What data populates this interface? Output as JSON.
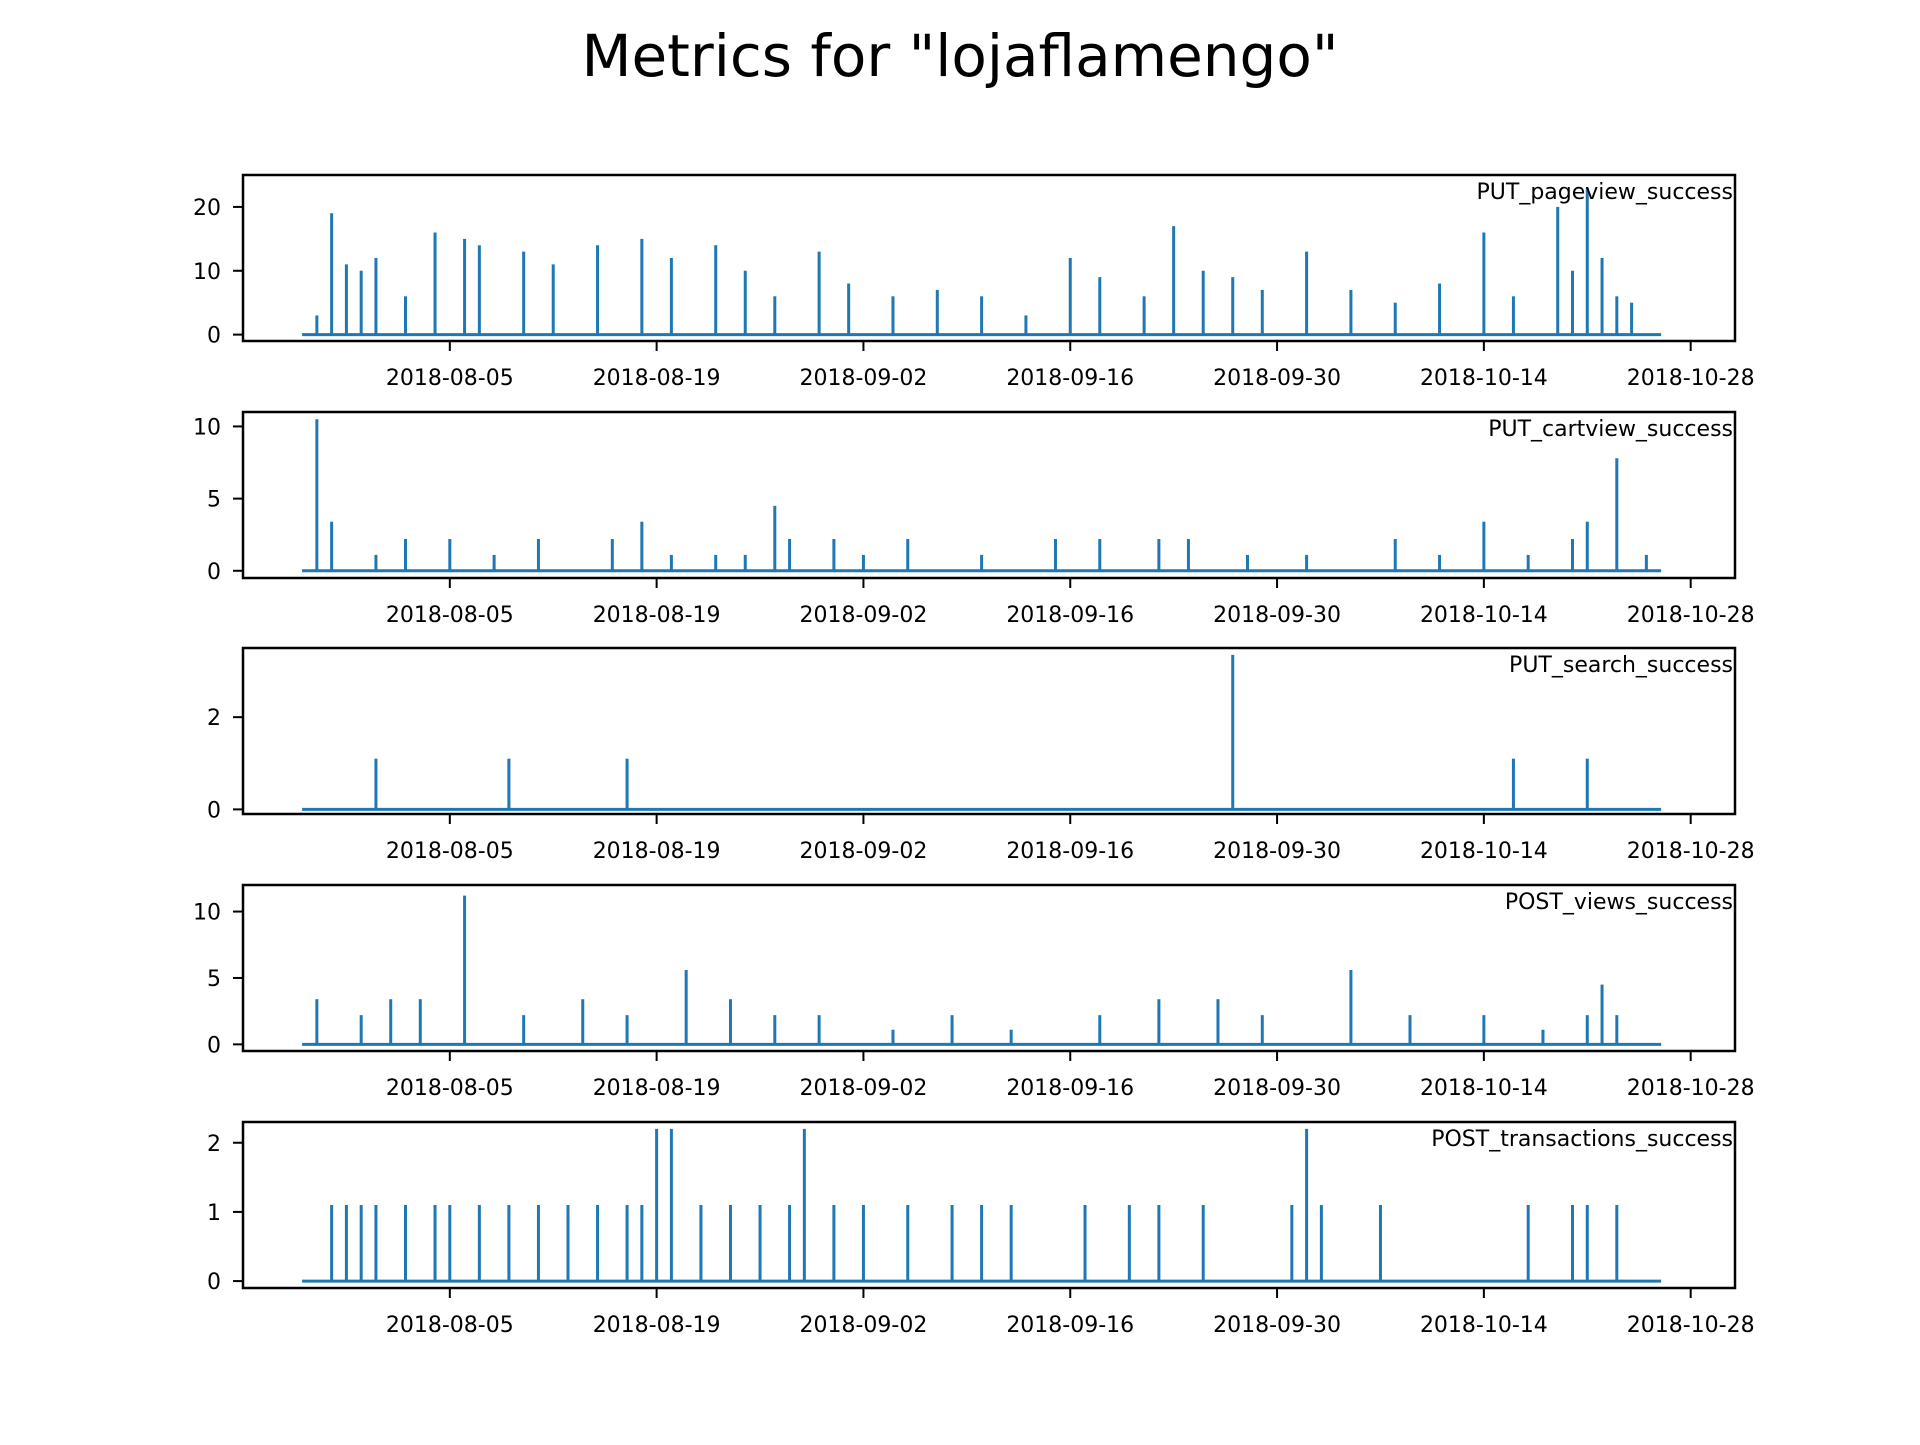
{
  "figure": {
    "title": "Metrics for \"lojaflamengo\""
  },
  "chart_data": [
    {
      "type": "line",
      "legend": "PUT_pageview_success",
      "legend_placement": "top-right",
      "grid": false,
      "color": "#1f77b4",
      "xlim": [
        "2018-07-22",
        "2018-10-31"
      ],
      "ylim": [
        -1,
        25
      ],
      "x_ticks": [
        "2018-08-05",
        "2018-08-19",
        "2018-09-02",
        "2018-09-16",
        "2018-09-30",
        "2018-10-14",
        "2018-10-28"
      ],
      "y_ticks": [
        0,
        10,
        20
      ],
      "x": [
        "2018-07-27",
        "2018-07-28",
        "2018-07-29",
        "2018-07-30",
        "2018-07-31",
        "2018-08-02",
        "2018-08-04",
        "2018-08-06",
        "2018-08-07",
        "2018-08-10",
        "2018-08-12",
        "2018-08-15",
        "2018-08-18",
        "2018-08-20",
        "2018-08-23",
        "2018-08-25",
        "2018-08-27",
        "2018-08-30",
        "2018-09-01",
        "2018-09-04",
        "2018-09-07",
        "2018-09-10",
        "2018-09-13",
        "2018-09-16",
        "2018-09-18",
        "2018-09-21",
        "2018-09-23",
        "2018-09-25",
        "2018-09-27",
        "2018-09-29",
        "2018-10-02",
        "2018-10-05",
        "2018-10-08",
        "2018-10-11",
        "2018-10-14",
        "2018-10-16",
        "2018-10-19",
        "2018-10-20",
        "2018-10-21",
        "2018-10-22",
        "2018-10-23",
        "2018-10-24"
      ],
      "values": [
        3,
        19,
        11,
        10,
        12,
        6,
        16,
        15,
        14,
        13,
        11,
        14,
        15,
        12,
        14,
        10,
        6,
        13,
        8,
        6,
        7,
        6,
        3,
        12,
        9,
        6,
        17,
        10,
        9,
        7,
        13,
        7,
        5,
        8,
        16,
        6,
        20,
        10,
        23,
        12,
        6,
        5
      ]
    },
    {
      "type": "line",
      "legend": "PUT_cartview_success",
      "legend_placement": "top-right",
      "grid": false,
      "color": "#1f77b4",
      "xlim": [
        "2018-07-22",
        "2018-10-31"
      ],
      "ylim": [
        -0.5,
        11
      ],
      "x_ticks": [
        "2018-08-05",
        "2018-08-19",
        "2018-09-02",
        "2018-09-16",
        "2018-09-30",
        "2018-10-14",
        "2018-10-28"
      ],
      "y_ticks": [
        0,
        5,
        10
      ],
      "x": [
        "2018-07-27",
        "2018-07-28",
        "2018-07-31",
        "2018-08-02",
        "2018-08-05",
        "2018-08-08",
        "2018-08-11",
        "2018-08-16",
        "2018-08-18",
        "2018-08-20",
        "2018-08-23",
        "2018-08-25",
        "2018-08-27",
        "2018-08-28",
        "2018-08-31",
        "2018-09-02",
        "2018-09-05",
        "2018-09-10",
        "2018-09-15",
        "2018-09-18",
        "2018-09-22",
        "2018-09-24",
        "2018-09-28",
        "2018-10-02",
        "2018-10-08",
        "2018-10-11",
        "2018-10-14",
        "2018-10-17",
        "2018-10-20",
        "2018-10-21",
        "2018-10-23",
        "2018-10-25"
      ],
      "values": [
        10.5,
        3.4,
        1.1,
        2.2,
        2.2,
        1.1,
        2.2,
        2.2,
        3.4,
        1.1,
        1.1,
        1.1,
        4.5,
        2.2,
        2.2,
        1.1,
        2.2,
        1.1,
        2.2,
        2.2,
        2.2,
        2.2,
        1.1,
        1.1,
        2.2,
        1.1,
        3.4,
        1.1,
        2.2,
        3.4,
        7.8,
        1.1
      ]
    },
    {
      "type": "line",
      "legend": "PUT_search_success",
      "legend_placement": "top-right",
      "grid": false,
      "color": "#1f77b4",
      "xlim": [
        "2018-07-22",
        "2018-10-31"
      ],
      "ylim": [
        -0.1,
        3.5
      ],
      "x_ticks": [
        "2018-08-05",
        "2018-08-19",
        "2018-09-02",
        "2018-09-16",
        "2018-09-30",
        "2018-10-14",
        "2018-10-28"
      ],
      "y_ticks": [
        0,
        2
      ],
      "x": [
        "2018-07-31",
        "2018-08-09",
        "2018-08-17",
        "2018-09-27",
        "2018-10-16",
        "2018-10-21"
      ],
      "values": [
        1.1,
        1.1,
        1.1,
        3.35,
        1.1,
        1.1
      ]
    },
    {
      "type": "line",
      "legend": "POST_views_success",
      "legend_placement": "top-right",
      "grid": false,
      "color": "#1f77b4",
      "xlim": [
        "2018-07-22",
        "2018-10-31"
      ],
      "ylim": [
        -0.5,
        12
      ],
      "x_ticks": [
        "2018-08-05",
        "2018-08-19",
        "2018-09-02",
        "2018-09-16",
        "2018-09-30",
        "2018-10-14",
        "2018-10-28"
      ],
      "y_ticks": [
        0,
        5,
        10
      ],
      "x": [
        "2018-07-27",
        "2018-07-30",
        "2018-08-01",
        "2018-08-03",
        "2018-08-06",
        "2018-08-10",
        "2018-08-14",
        "2018-08-17",
        "2018-08-21",
        "2018-08-24",
        "2018-08-27",
        "2018-08-30",
        "2018-09-04",
        "2018-09-08",
        "2018-09-12",
        "2018-09-18",
        "2018-09-22",
        "2018-09-26",
        "2018-09-29",
        "2018-10-05",
        "2018-10-09",
        "2018-10-14",
        "2018-10-18",
        "2018-10-21",
        "2018-10-22",
        "2018-10-23"
      ],
      "values": [
        3.4,
        2.2,
        3.4,
        3.4,
        11.2,
        2.2,
        3.4,
        2.2,
        5.6,
        3.4,
        2.2,
        2.2,
        1.1,
        2.2,
        1.1,
        2.2,
        3.4,
        3.4,
        2.2,
        5.6,
        2.2,
        2.2,
        1.1,
        2.2,
        4.5,
        2.2
      ]
    },
    {
      "type": "line",
      "legend": "POST_transactions_success",
      "legend_placement": "top-right",
      "grid": false,
      "color": "#1f77b4",
      "xlim": [
        "2018-07-22",
        "2018-10-31"
      ],
      "ylim": [
        -0.1,
        2.3
      ],
      "x_ticks": [
        "2018-08-05",
        "2018-08-19",
        "2018-09-02",
        "2018-09-16",
        "2018-09-30",
        "2018-10-14",
        "2018-10-28"
      ],
      "y_ticks": [
        0,
        1,
        2
      ],
      "x": [
        "2018-07-28",
        "2018-07-29",
        "2018-07-30",
        "2018-07-31",
        "2018-08-02",
        "2018-08-04",
        "2018-08-05",
        "2018-08-07",
        "2018-08-09",
        "2018-08-11",
        "2018-08-13",
        "2018-08-15",
        "2018-08-17",
        "2018-08-18",
        "2018-08-19",
        "2018-08-20",
        "2018-08-22",
        "2018-08-24",
        "2018-08-26",
        "2018-08-28",
        "2018-08-29",
        "2018-08-31",
        "2018-09-02",
        "2018-09-05",
        "2018-09-08",
        "2018-09-10",
        "2018-09-12",
        "2018-09-17",
        "2018-09-20",
        "2018-09-22",
        "2018-09-25",
        "2018-10-01",
        "2018-10-02",
        "2018-10-03",
        "2018-10-07",
        "2018-10-17",
        "2018-10-20",
        "2018-10-21",
        "2018-10-23"
      ],
      "values": [
        1.1,
        1.1,
        1.1,
        1.1,
        1.1,
        1.1,
        1.1,
        1.1,
        1.1,
        1.1,
        1.1,
        1.1,
        1.1,
        1.1,
        2.2,
        2.2,
        1.1,
        1.1,
        1.1,
        1.1,
        2.2,
        1.1,
        1.1,
        1.1,
        1.1,
        1.1,
        1.1,
        1.1,
        1.1,
        1.1,
        1.1,
        1.1,
        2.2,
        1.1,
        1.1,
        1.1,
        1.1,
        1.1,
        1.1
      ]
    }
  ]
}
